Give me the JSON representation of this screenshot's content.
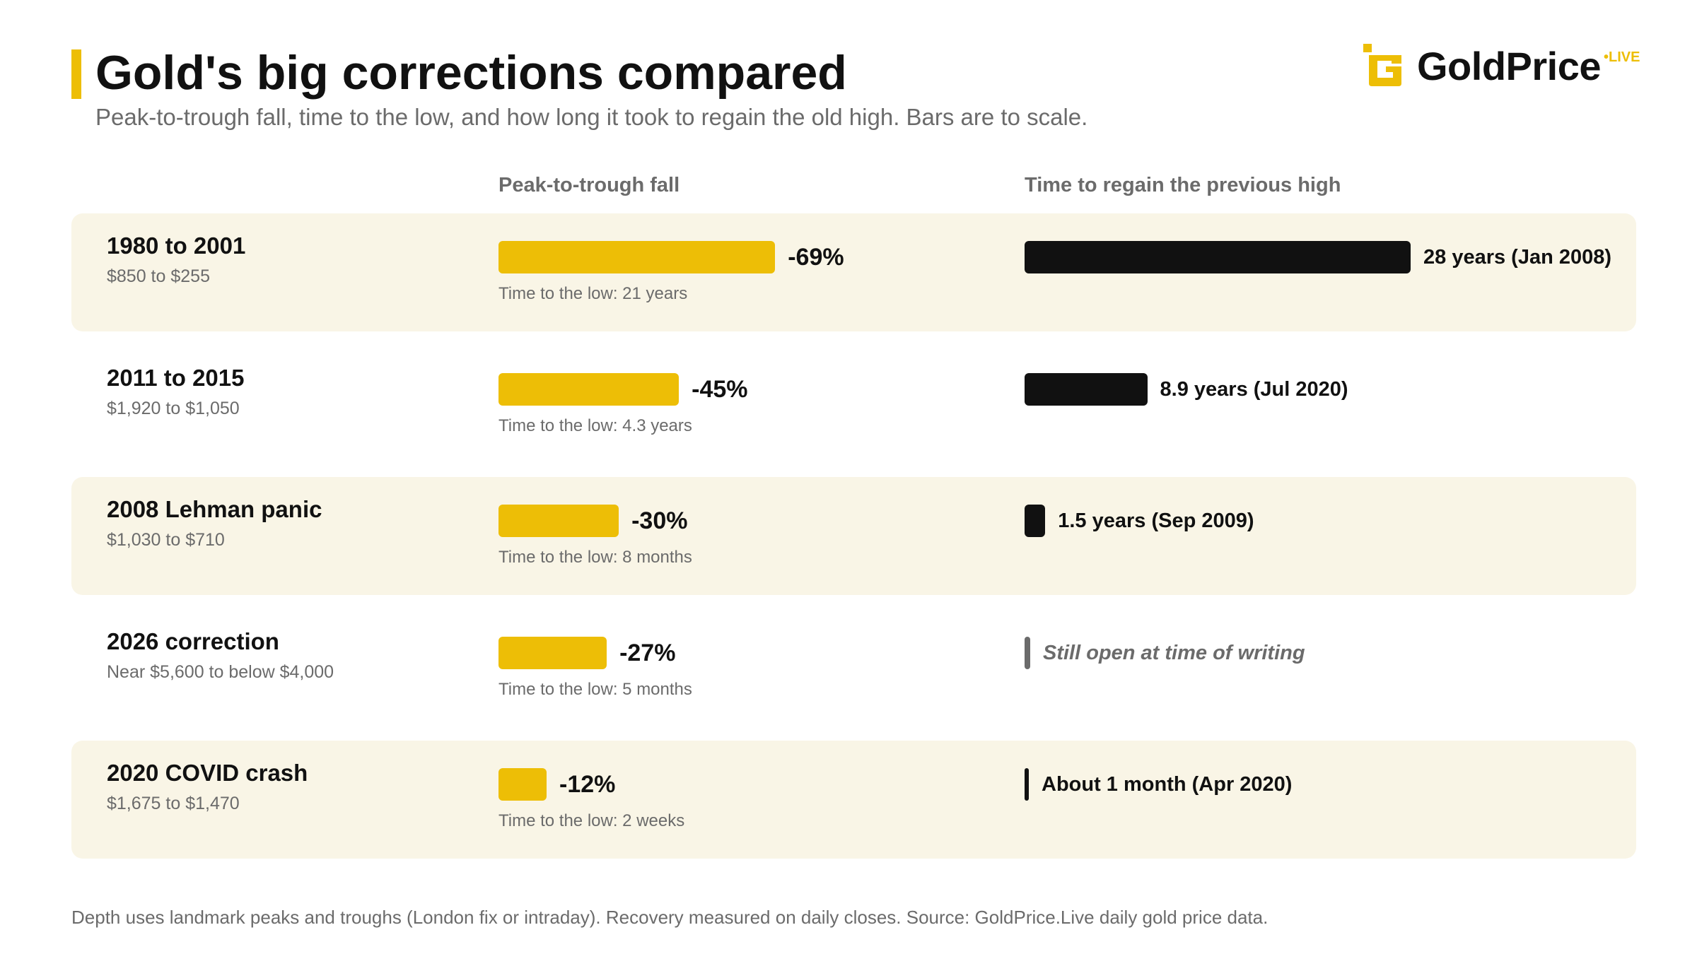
{
  "title": "Gold's big corrections compared",
  "subtitle": "Peak-to-trough fall, time to the low, and how long it took to regain the old high. Bars are to scale.",
  "logo": {
    "text": "GoldPrice",
    "superscript": "•LIVE"
  },
  "columns": {
    "fall": "Peak-to-trough fall",
    "recovery": "Time to regain the previous high"
  },
  "footnote": "Depth uses landmark peaks and troughs (London fix or intraday). Recovery measured on daily closes. Source: GoldPrice.Live daily gold price data.",
  "colors": {
    "accent": "#EDBE06",
    "recovery_bar": "#111111",
    "open_bar": "#6b6b6b",
    "row_shade": "#F9F5E6"
  },
  "chart_data": {
    "type": "bar",
    "series": [
      {
        "name": "Peak-to-trough fall",
        "values": [
          -69,
          -45,
          -30,
          -27,
          -12
        ]
      },
      {
        "name": "Time to regain the previous high",
        "values": [
          28,
          8.9,
          1.5,
          null,
          0.0833
        ]
      }
    ],
    "rows": [
      {
        "title": "1980 to 2001",
        "range": "$850 to $255",
        "fall_pct": -69,
        "fall_label": "-69%",
        "time_to_low": "Time to the low: 21 years",
        "recovery_years": 28,
        "recovery_label": "28 years (Jan 2008)",
        "open": false
      },
      {
        "title": "2011 to 2015",
        "range": "$1,920 to $1,050",
        "fall_pct": -45,
        "fall_label": "-45%",
        "time_to_low": "Time to the low: 4.3 years",
        "recovery_years": 8.9,
        "recovery_label": "8.9 years (Jul 2020)",
        "open": false
      },
      {
        "title": "2008 Lehman panic",
        "range": "$1,030 to $710",
        "fall_pct": -30,
        "fall_label": "-30%",
        "time_to_low": "Time to the low: 8 months",
        "recovery_years": 1.5,
        "recovery_label": "1.5 years (Sep 2009)",
        "open": false
      },
      {
        "title": "2026 correction",
        "range": "Near $5,600 to below $4,000",
        "fall_pct": -27,
        "fall_label": "-27%",
        "time_to_low": "Time to the low: 5 months",
        "recovery_years": null,
        "recovery_label": "Still open at time of writing",
        "open": true
      },
      {
        "title": "2020 COVID crash",
        "range": "$1,675 to $1,470",
        "fall_pct": -12,
        "fall_label": "-12%",
        "time_to_low": "Time to the low: 2 weeks",
        "recovery_years": 0.0833,
        "recovery_label": "About 1 month (Apr 2020)",
        "open": false
      }
    ]
  }
}
